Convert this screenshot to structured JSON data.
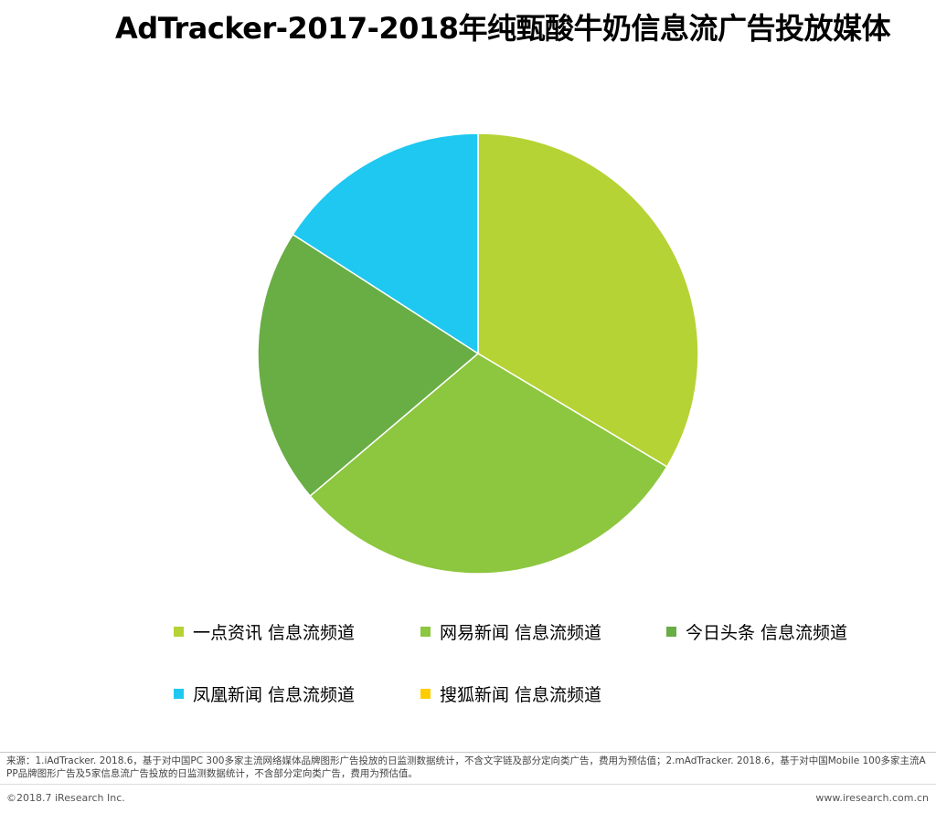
{
  "chart_data": {
    "type": "pie",
    "title": "AdTracker-2017-2018年纯甄酸牛奶信息流广告投放媒体",
    "slices": [
      {
        "label": "一点资讯 信息流频道",
        "value": 33.6,
        "color": "#b5d334"
      },
      {
        "label": "网易新闻 信息流频道",
        "value": 30.2,
        "color": "#8dc63f"
      },
      {
        "label": "今日头条 信息流频道",
        "value": 20.3,
        "color": "#69ad45"
      },
      {
        "label": "凤凰新闻 信息流频道",
        "value": 15.9,
        "color": "#1fc8f1"
      },
      {
        "label": "搜狐新闻 信息流频道",
        "value": 0,
        "color": "#ffcc00"
      }
    ],
    "legend_placement": "bottom"
  },
  "footer": {
    "source": "来源：1.iAdTracker. 2018.6，基于对中国PC 300多家主流网络媒体品牌图形广告投放的日监测数据统计，不含文字链及部分定向类广告，费用为预估值；2.mAdTracker. 2018.6，基于对中国Mobile 100多家主流APP品牌图形广告及5家信息流广告投放的日监测数据统计，不含部分定向类广告，费用为预估值。",
    "copyright": "©2018.7 iResearch Inc.",
    "website": "www.iresearch.com.cn"
  }
}
